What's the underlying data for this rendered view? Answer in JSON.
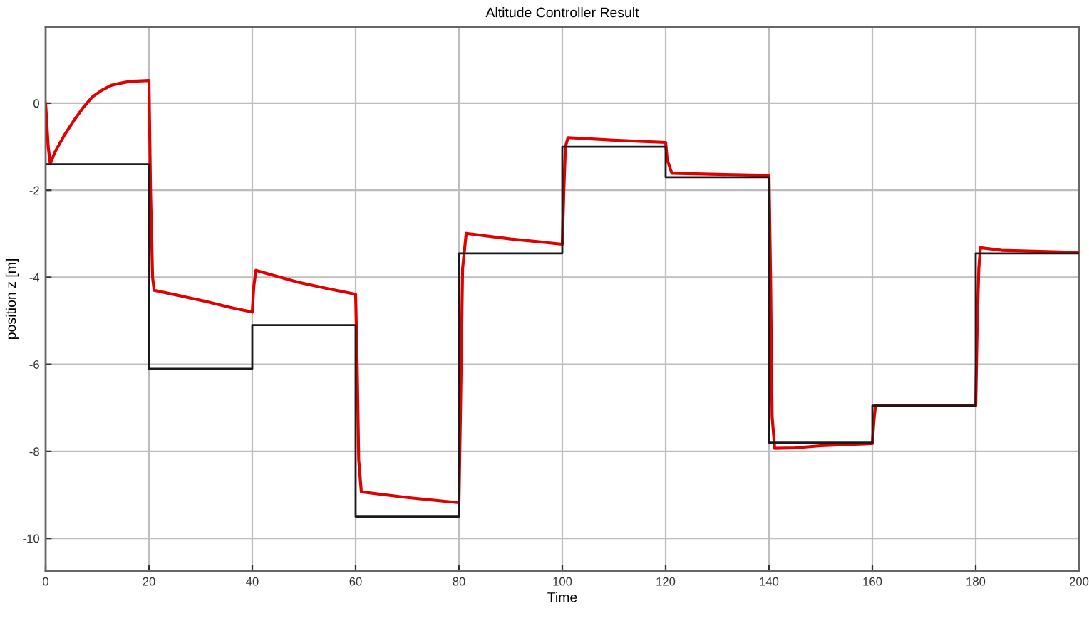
{
  "chart_data": {
    "type": "line",
    "title": "Altitude Controller Result",
    "xlabel": "Time",
    "ylabel": "position z [m]",
    "series": [
      {
        "color": "#e00000",
        "x": [
          0,
          0.5,
          0.9,
          1.8,
          3.6,
          5.4,
          7.2,
          9.0,
          10.9,
          12.7,
          14.5,
          16.3,
          20.0,
          20.3,
          20.7,
          21.0,
          25,
          30.8,
          36,
          40,
          40.3,
          40.7,
          44,
          48.8,
          55,
          60,
          60.3,
          60.6,
          61.1,
          70,
          80,
          80.3,
          80.7,
          81.4,
          90,
          100,
          100.3,
          100.6,
          101.1,
          110,
          120,
          120.3,
          121.2,
          140,
          140.3,
          140.6,
          141.1,
          145,
          150,
          160,
          160.3,
          160.6,
          180,
          180.3,
          180.6,
          180.9,
          185,
          200
        ],
        "values": [
          0,
          -1.0,
          -1.39,
          -1.12,
          -0.74,
          -0.41,
          -0.11,
          0.14,
          0.3,
          0.41,
          0.46,
          0.5,
          0.52,
          -2.0,
          -4.0,
          -4.3,
          -4.4,
          -4.55,
          -4.7,
          -4.8,
          -4.2,
          -3.84,
          -3.95,
          -4.11,
          -4.27,
          -4.39,
          -6.0,
          -8.2,
          -8.93,
          -9.06,
          -9.18,
          -7.0,
          -3.8,
          -2.99,
          -3.12,
          -3.24,
          -2.0,
          -1.0,
          -0.79,
          -0.85,
          -0.9,
          -1.3,
          -1.61,
          -1.66,
          -4.0,
          -7.2,
          -7.93,
          -7.92,
          -7.87,
          -7.82,
          -7.3,
          -6.95,
          -6.95,
          -5.0,
          -3.8,
          -3.32,
          -3.38,
          -3.43
        ]
      },
      {
        "type": "step",
        "color": "#1a1a1a",
        "x": [
          0,
          20,
          40,
          60,
          80,
          100,
          120,
          140,
          160,
          180,
          200
        ],
        "values": [
          -1.4,
          -6.1,
          -5.1,
          -9.5,
          -3.45,
          -1.0,
          -1.7,
          -7.8,
          -6.95,
          -3.45,
          -3.45
        ]
      }
    ],
    "xlim": [
      0,
      200
    ],
    "ylim": [
      -10.75,
      1.75
    ],
    "xticks": [
      0,
      20,
      40,
      60,
      80,
      100,
      120,
      140,
      160,
      180,
      200
    ],
    "yticks": [
      -10,
      -8,
      -6,
      -4,
      -2,
      0
    ],
    "grid": true
  }
}
